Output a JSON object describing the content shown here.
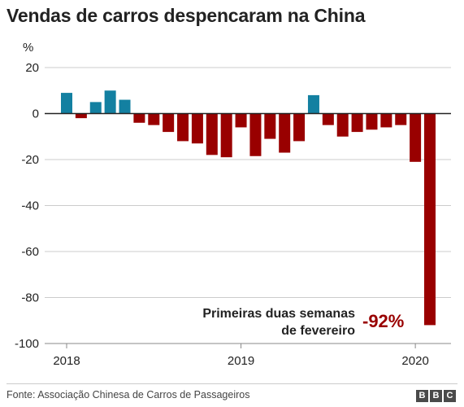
{
  "title": "Vendas de carros despencaram na China",
  "footer": {
    "source": "Fonte: Associação Chinesa de Carros de Passageiros",
    "logo_letters": [
      "B",
      "B",
      "C"
    ]
  },
  "colors": {
    "positive": "#1380a1",
    "negative": "#990000",
    "grid": "#cccccc",
    "zero_line": "#222222",
    "annotation_value": "#990000"
  },
  "chart_data": {
    "type": "bar",
    "title": "Vendas de carros despencaram na China",
    "ylabel": "%",
    "ylim": [
      -100,
      20
    ],
    "yticks": [
      20,
      0,
      -20,
      -40,
      -60,
      -80,
      -100
    ],
    "grid": true,
    "x_tick_labels": [
      "2018",
      "2019",
      "2020"
    ],
    "x_tick_positions": [
      0,
      12,
      24
    ],
    "categories": [
      "2018-01",
      "2018-02",
      "2018-03",
      "2018-04",
      "2018-05",
      "2018-06",
      "2018-07",
      "2018-08",
      "2018-09",
      "2018-10",
      "2018-11",
      "2018-12",
      "2019-01",
      "2019-02",
      "2019-03",
      "2019-04",
      "2019-05",
      "2019-06",
      "2019-07",
      "2019-08",
      "2019-09",
      "2019-10",
      "2019-11",
      "2019-12",
      "2020-01",
      "2020-02"
    ],
    "values": [
      9,
      -2,
      5,
      10,
      6,
      -4,
      -5,
      -8,
      -12,
      -13,
      -18,
      -19,
      -6,
      -18.5,
      -11,
      -17,
      -12,
      8,
      -5,
      -10,
      -8,
      -7,
      -6,
      -5,
      -21,
      -92
    ],
    "annotation": {
      "text_lines": [
        "Primeiras duas semanas",
        "de fevereiro"
      ],
      "value_label": "-92%"
    }
  }
}
